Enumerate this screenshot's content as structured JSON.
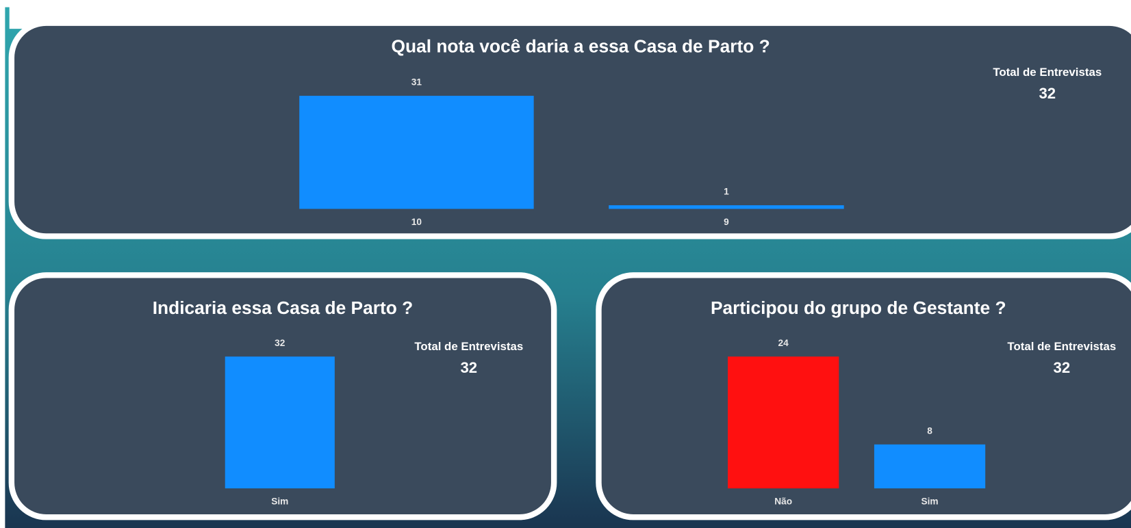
{
  "chart_data": [
    {
      "type": "bar",
      "title": "Qual nota você daria a essa Casa de Parto ?",
      "categories": [
        "10",
        "9"
      ],
      "values": [
        31,
        1
      ],
      "color": "#118dff",
      "ylim": [
        0,
        31
      ],
      "card": {
        "label": "Total de Entrevistas",
        "value": 32
      }
    },
    {
      "type": "bar",
      "title": "Indicaria essa Casa de Parto ?",
      "categories": [
        "Sim"
      ],
      "values": [
        32
      ],
      "color": "#118dff",
      "ylim": [
        0,
        32
      ],
      "card": {
        "label": "Total de Entrevistas",
        "value": 32
      }
    },
    {
      "type": "bar",
      "title": "Participou do grupo de Gestante ?",
      "categories": [
        "Não",
        "Sim"
      ],
      "values": [
        24,
        8
      ],
      "colors": [
        "#ff1010",
        "#118dff"
      ],
      "ylim": [
        0,
        24
      ],
      "card": {
        "label": "Total de Entrevistas",
        "value": 32
      }
    }
  ]
}
